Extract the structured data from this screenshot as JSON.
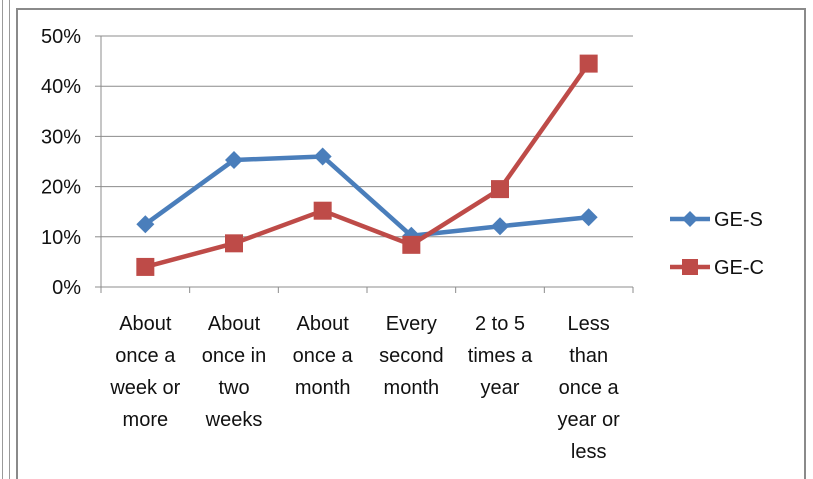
{
  "chart_data": {
    "type": "line",
    "title": "",
    "xlabel": "",
    "ylabel": "",
    "ylim": [
      0,
      50
    ],
    "yticks": [
      "0%",
      "10%",
      "20%",
      "30%",
      "40%",
      "50%"
    ],
    "grid": true,
    "legend_position": "right",
    "categories": [
      [
        "About",
        "once a",
        "week or",
        "more"
      ],
      [
        "About",
        "once in",
        "two",
        "weeks"
      ],
      [
        "About",
        "once a",
        "month"
      ],
      [
        "Every",
        "second",
        "month"
      ],
      [
        "2 to 5",
        "times a",
        "year"
      ],
      [
        "Less",
        "than",
        "once a",
        "year or",
        "less"
      ]
    ],
    "series": [
      {
        "name": "GE-S",
        "color": "#4a7ebb",
        "marker": "diamond",
        "values": [
          12.5,
          25.3,
          26.0,
          10.2,
          12.1,
          13.9
        ]
      },
      {
        "name": "GE-C",
        "color": "#be4b48",
        "marker": "square",
        "values": [
          4.0,
          8.7,
          15.2,
          8.4,
          19.5,
          44.5
        ]
      }
    ]
  }
}
